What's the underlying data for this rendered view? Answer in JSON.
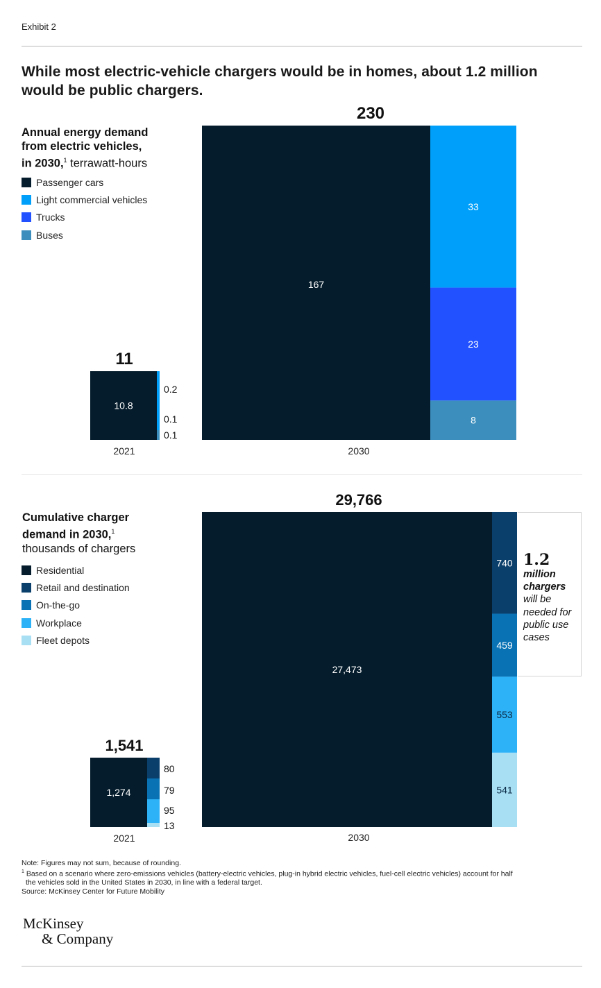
{
  "exhibit": "Exhibit 2",
  "title": "While most electric-vehicle chargers would be in homes, about 1.2 million would be public chargers.",
  "colors": {
    "navy": "#051c2c",
    "light_blue": "#00a0fa",
    "trucks_blue": "#2251ff",
    "buses_blue": "#3c8fbd",
    "retail": "#0b3f6b",
    "on_the_go": "#0872b5",
    "workplace": "#2db2f7",
    "fleet": "#a8dff3"
  },
  "energy": {
    "title_bold1": "Annual energy demand",
    "title_bold2": "from electric vehicles,",
    "title_bold3": "in 2030,",
    "title_sup": "1",
    "title_unit": " terrawatt-hours",
    "legend": [
      "Passenger cars",
      "Light commercial vehicles",
      "Trucks",
      "Buses"
    ]
  },
  "chargers": {
    "title_bold1": "Cumulative charger",
    "title_bold2": "demand in 2030,",
    "title_sup": "1",
    "title_unit": "thousands of chargers",
    "legend": [
      "Residential",
      "Retail and destination",
      "On-the-go",
      "Workplace",
      "Fleet depots"
    ]
  },
  "callout": {
    "value": "1.2",
    "bold": "million chargers",
    "rest": "will be needed for public use cases"
  },
  "chart_data": [
    {
      "type": "bar",
      "title": "Annual energy demand from electric vehicles, in 2030, terrawatt-hours",
      "categories": [
        "2021",
        "2030"
      ],
      "totals": [
        "11",
        "230"
      ],
      "series": [
        {
          "name": "Passenger cars",
          "values": [
            10.8,
            167
          ],
          "labels": [
            "10.8",
            "167"
          ]
        },
        {
          "name": "Light commercial vehicles",
          "values": [
            0.2,
            33
          ],
          "labels": [
            "0.2",
            "33"
          ]
        },
        {
          "name": "Trucks",
          "values": [
            0.1,
            23
          ],
          "labels": [
            "0.1",
            "23"
          ]
        },
        {
          "name": "Buses",
          "values": [
            0.1,
            8
          ],
          "labels": [
            "0.1",
            "8"
          ]
        }
      ]
    },
    {
      "type": "bar",
      "title": "Cumulative charger demand in 2030, thousands of chargers",
      "categories": [
        "2021",
        "2030"
      ],
      "totals": [
        "1,541",
        "29,766"
      ],
      "series": [
        {
          "name": "Residential",
          "values": [
            1274,
            27473
          ],
          "labels": [
            "1,274",
            "27,473"
          ]
        },
        {
          "name": "Retail and destination",
          "values": [
            80,
            740
          ],
          "labels": [
            "80",
            "740"
          ]
        },
        {
          "name": "On-the-go",
          "values": [
            79,
            459
          ],
          "labels": [
            "79",
            "459"
          ]
        },
        {
          "name": "Workplace",
          "values": [
            95,
            553
          ],
          "labels": [
            "95",
            "553"
          ]
        },
        {
          "name": "Fleet depots",
          "values": [
            13,
            541
          ],
          "labels": [
            "13",
            "541"
          ]
        }
      ]
    }
  ],
  "notes": {
    "note": "Note: Figures may not sum, because of rounding.",
    "sup": "1",
    "footnote_line1": "Based on a scenario where zero-emissions vehicles (battery-electric vehicles, plug-in hybrid electric vehicles, fuel-cell electric vehicles) account for half",
    "footnote_line2": "the vehicles sold in the United States in 2030, in line with a federal target.",
    "source": "Source: McKinsey Center for Future Mobility"
  },
  "logo": {
    "line1": "McKinsey",
    "line2": "& Company"
  }
}
